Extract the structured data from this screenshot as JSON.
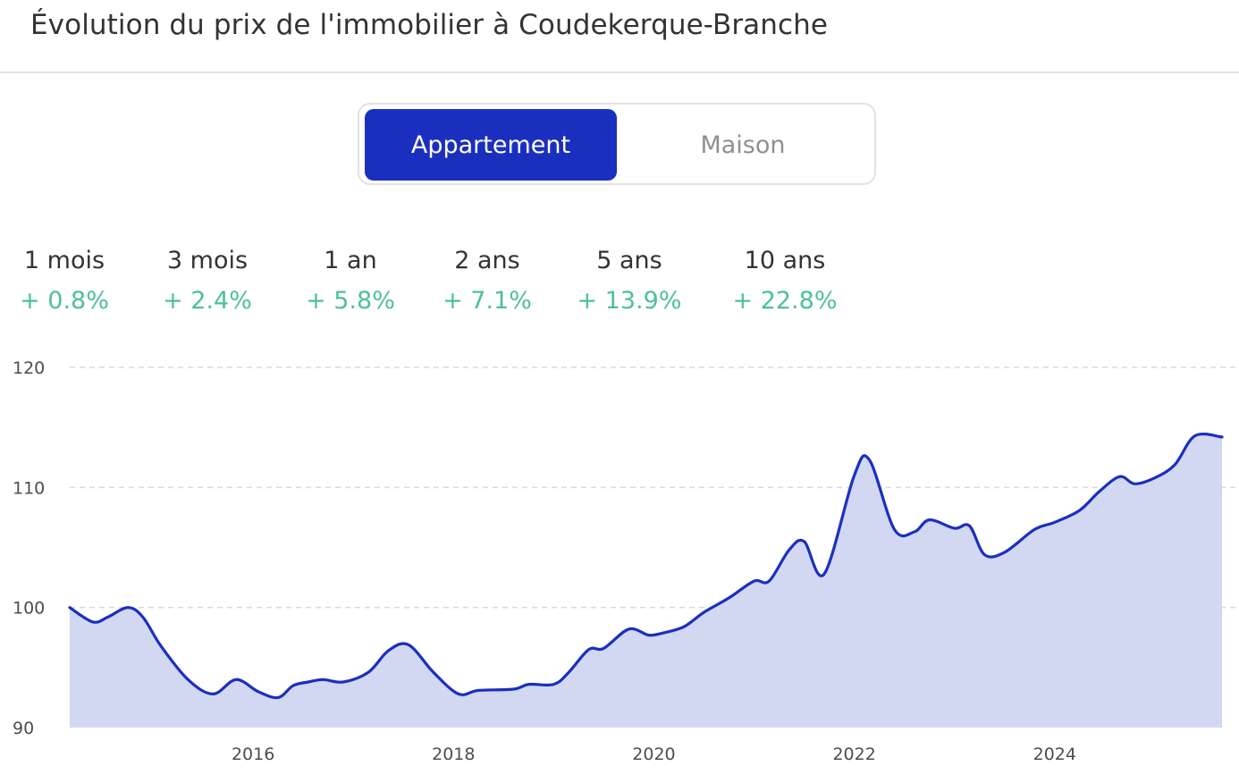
{
  "title": "Évolution du prix de l'immobilier à Coudekerque-Branche",
  "toggle": {
    "options": [
      "Appartement",
      "Maison"
    ],
    "selected": "Appartement"
  },
  "stats": [
    {
      "label": "1 mois",
      "value": "+ 0.8%"
    },
    {
      "label": "3 mois",
      "value": "+ 2.4%"
    },
    {
      "label": "1 an",
      "value": "+ 5.8%"
    },
    {
      "label": "2 ans",
      "value": "+ 7.1%"
    },
    {
      "label": "5 ans",
      "value": "+ 13.9%"
    },
    {
      "label": "10 ans",
      "value": "+ 22.8%"
    }
  ],
  "colors": {
    "accent": "#1b2fbf",
    "area": "#d2d8f2",
    "positive": "#4cc195",
    "grid": "#d9d9d9"
  },
  "chart_data": {
    "type": "area",
    "title": "",
    "xlabel": "",
    "ylabel": "",
    "ylim": [
      90,
      120
    ],
    "xlim": [
      2014.17,
      2025.67
    ],
    "yticks": [
      90,
      100,
      110,
      120
    ],
    "xticks": [
      2016,
      2018,
      2020,
      2022,
      2024
    ],
    "grid": true,
    "series": [
      {
        "x": [
          2014.17,
          2014.4,
          2014.55,
          2014.75,
          2014.9,
          2015.08,
          2015.35,
          2015.6,
          2015.83,
          2016.05,
          2016.25,
          2016.4,
          2016.55,
          2016.7,
          2016.9,
          2017.15,
          2017.35,
          2017.55,
          2017.8,
          2018.05,
          2018.25,
          2018.6,
          2018.75,
          2019.0,
          2019.15,
          2019.35,
          2019.5,
          2019.75,
          2019.95,
          2020.1,
          2020.3,
          2020.5,
          2020.75,
          2021.0,
          2021.15,
          2021.35,
          2021.5,
          2021.7,
          2022.0,
          2022.15,
          2022.4,
          2022.6,
          2022.75,
          2023.0,
          2023.15,
          2023.3,
          2023.5,
          2023.8,
          2024.0,
          2024.25,
          2024.45,
          2024.65,
          2024.8,
          2025.0,
          2025.2,
          2025.4,
          2025.67
        ],
        "y": [
          100.0,
          98.8,
          99.2,
          100.0,
          99.2,
          96.8,
          94.0,
          92.8,
          94.0,
          93.0,
          92.5,
          93.5,
          93.8,
          94.0,
          93.8,
          94.6,
          96.4,
          96.9,
          94.6,
          92.8,
          93.1,
          93.2,
          93.6,
          93.6,
          94.6,
          96.5,
          96.6,
          98.2,
          97.7,
          97.9,
          98.4,
          99.6,
          100.8,
          102.2,
          102.2,
          104.8,
          105.5,
          102.8,
          111.0,
          112.3,
          106.5,
          106.3,
          107.3,
          106.6,
          106.8,
          104.4,
          104.6,
          106.5,
          107.1,
          108.1,
          109.7,
          110.9,
          110.3,
          110.8,
          111.9,
          114.3,
          114.2
        ]
      }
    ]
  }
}
